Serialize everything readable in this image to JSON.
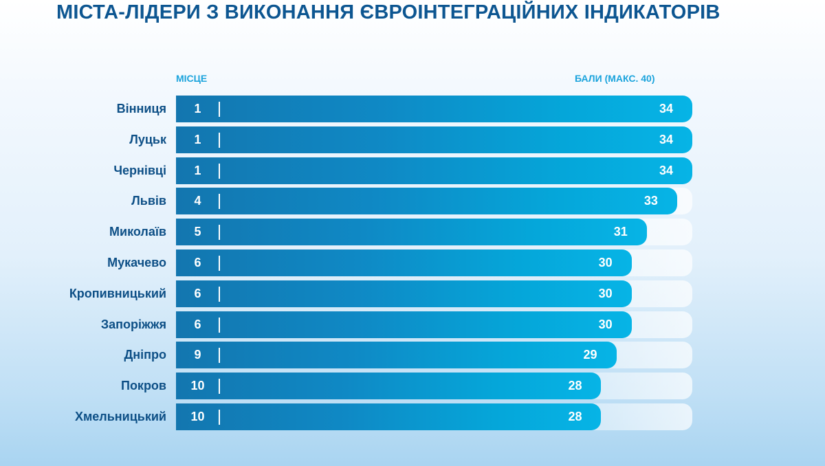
{
  "chart_data": {
    "type": "bar",
    "orientation": "horizontal",
    "title": "МІСТА-ЛІДЕРИ З ВИКОНАННЯ ЄВРОІНТЕГРАЦІЙНИХ ІНДИКАТОРІВ",
    "rank_header": "МІСЦЕ",
    "score_header": "БАЛИ (МАКС. 40)",
    "max_score": 40,
    "categories": [
      "Вінниця",
      "Луцьк",
      "Чернівці",
      "Львів",
      "Миколаїв",
      "Мукачево",
      "Кропивницький",
      "Запоріжжя",
      "Дніпро",
      "Покров",
      "Хмельницький"
    ],
    "ranks": [
      1,
      1,
      1,
      4,
      5,
      6,
      6,
      6,
      9,
      10,
      10
    ],
    "values": [
      34,
      34,
      34,
      33,
      31,
      30,
      30,
      30,
      29,
      28,
      28
    ],
    "colors": {
      "title": "#0d5691",
      "header": "#1aa3dc",
      "bar_start": "#1376af",
      "bar_end": "#06b4e6",
      "city_label": "#0d4f86"
    }
  }
}
